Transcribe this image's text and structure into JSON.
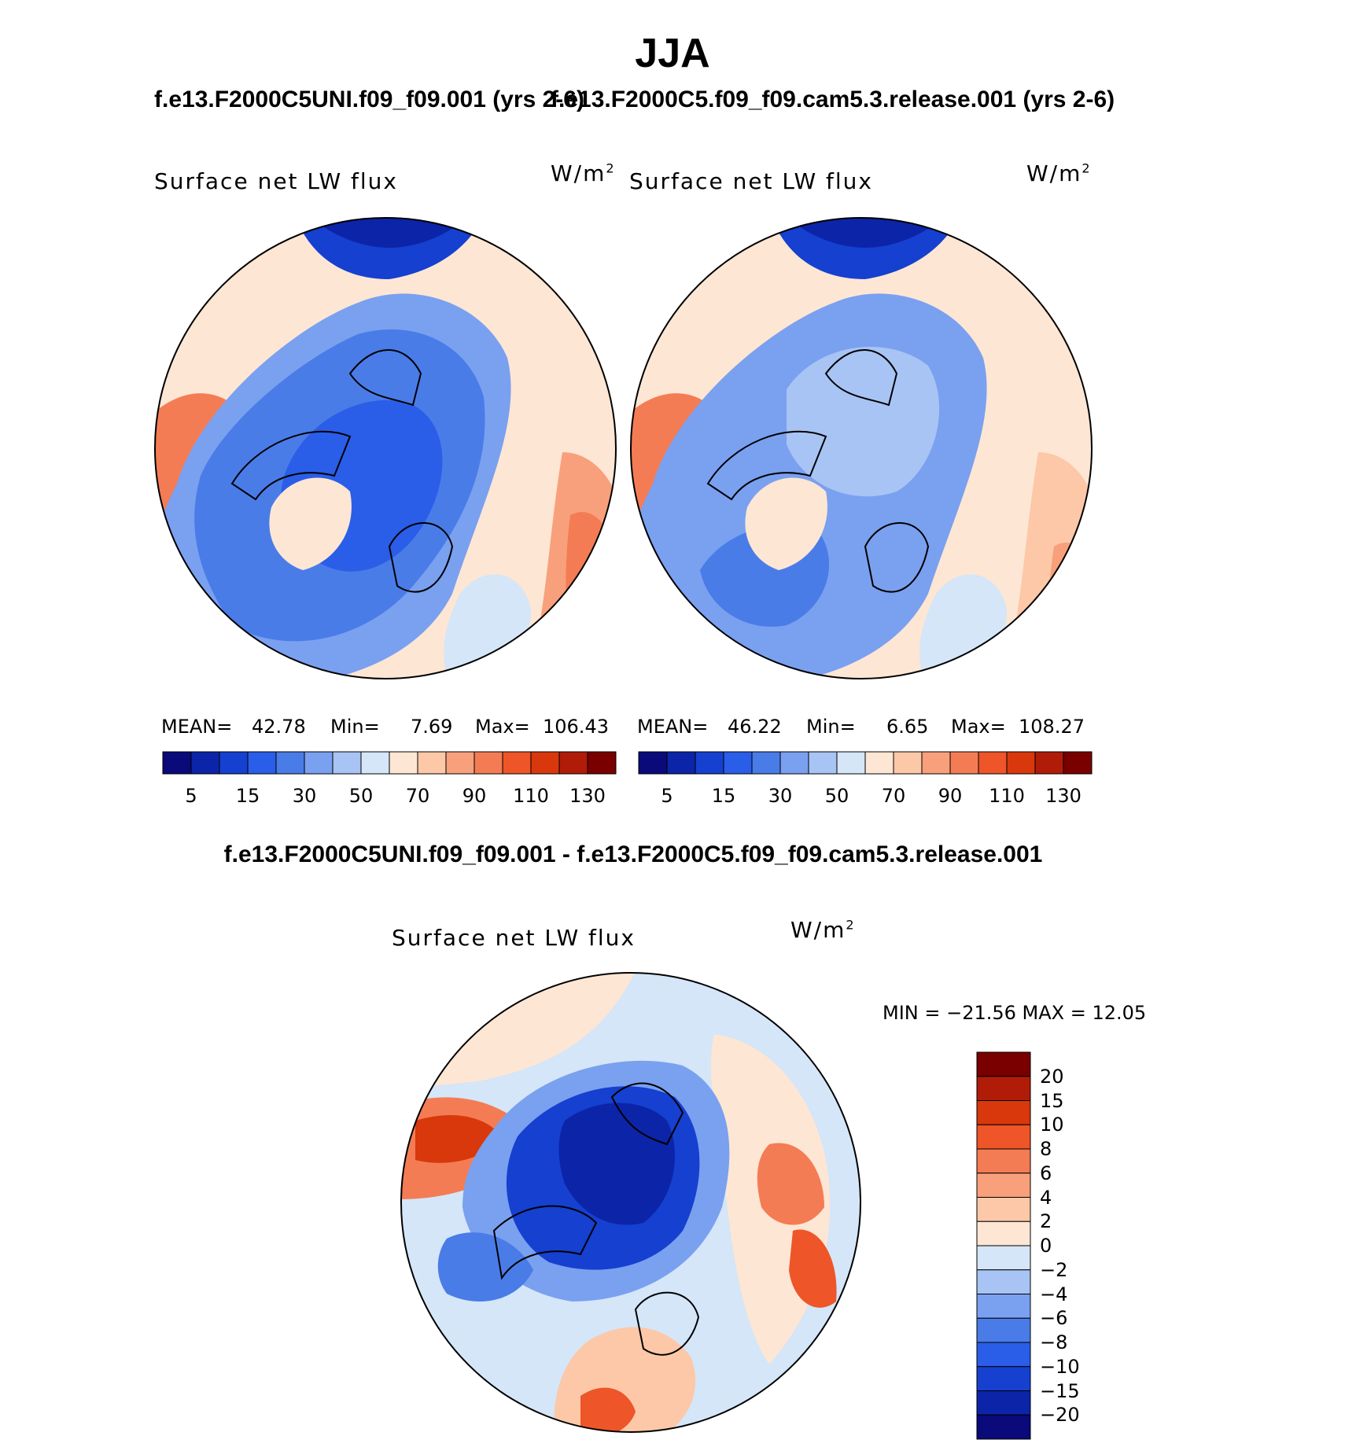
{
  "figure": {
    "title": "JJA",
    "left_run_title": "f.e13.F2000C5UNI.f09_f09.001 (yrs 2-6)",
    "right_run_title": "f.e13.F2000C5.f09_f09.cam5.3.release.001 (yrs 2-6)",
    "diff_title": "f.e13.F2000C5UNI.f09_f09.001 - f.e13.F2000C5.f09_f09.cam5.3.release.001"
  },
  "panels": {
    "left": {
      "variable": "Surface net LW flux",
      "units": "W/m",
      "units_sup": "2",
      "mean_label": "MEAN=",
      "mean": "42.78",
      "min_label": "Min=",
      "min": "7.69",
      "max_label": "Max=",
      "max": "106.43"
    },
    "right": {
      "variable": "Surface net LW flux",
      "units": "W/m",
      "units_sup": "2",
      "mean_label": "MEAN=",
      "mean": "46.22",
      "min_label": "Min=",
      "min": "6.65",
      "max_label": "Max=",
      "max": "108.27"
    },
    "diff": {
      "variable": "Surface net LW flux",
      "units": "W/m",
      "units_sup": "2",
      "minmax_text": "MIN = −21.56 MAX =   12.05"
    }
  },
  "colorbars": {
    "field_colors": [
      "#0a0a7a",
      "#0c24a8",
      "#1540d0",
      "#2a5ee8",
      "#4a7ce8",
      "#7aa0f0",
      "#a8c4f4",
      "#d4e6f8",
      "#fde6d4",
      "#fcc8a8",
      "#f8a07c",
      "#f47c54",
      "#ee5528",
      "#d8380c",
      "#b01c08",
      "#7a0000"
    ],
    "field_ticks": [
      "5",
      "15",
      "30",
      "50",
      "70",
      "90",
      "110",
      "130"
    ],
    "diff_colors": [
      "#0a0a7a",
      "#0c24a8",
      "#1540d0",
      "#2a5ee8",
      "#4a7ce8",
      "#7aa0f0",
      "#a8c4f4",
      "#d4e6f8",
      "#fde6d4",
      "#fcc8a8",
      "#f8a07c",
      "#f47c54",
      "#ee5528",
      "#d8380c",
      "#b01c08",
      "#7a0000"
    ],
    "diff_ticks": [
      "20",
      "15",
      "10",
      "8",
      "6",
      "4",
      "2",
      "0",
      "−2",
      "−4",
      "−6",
      "−8",
      "−10",
      "−15",
      "−20"
    ]
  },
  "map_colors": {
    "deep_blue": "#1540d0",
    "mid_blue": "#4a7ce8",
    "light_blue": "#a8c4f4",
    "pale_blue": "#d4e6f8",
    "pale_orange": "#fde6d4",
    "light_orange": "#fcc8a8",
    "orange": "#f47c54",
    "dark_orange": "#d8380c",
    "navy": "#0c24a8"
  }
}
